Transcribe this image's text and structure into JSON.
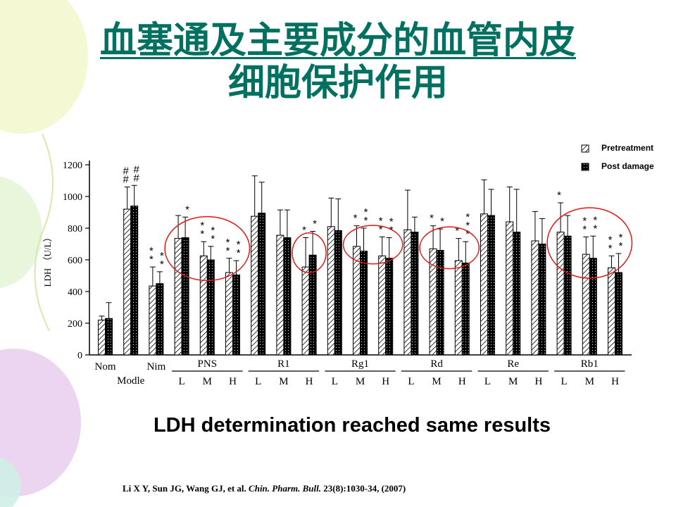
{
  "slide": {
    "title_line1": "血塞通及主要成分的血管内皮",
    "title_line2": "细胞保护作用",
    "subtitle": "LDH determination reached same results",
    "citation_authors": "Li X Y, Sun JG, Wang GJ, et al. ",
    "citation_journal": "Chin. Pharm. Bull.",
    "citation_rest": " 23(8):1030-34, (2007)"
  },
  "colors": {
    "title": "#007060",
    "highlight_circle": "#e01818",
    "bar_fill": "#000000",
    "axis": "#000000"
  },
  "chart_data": {
    "type": "bar",
    "ylabel": "LDH （U/L）",
    "ylim": [
      0,
      1200
    ],
    "yticks": [
      0,
      200,
      400,
      600,
      800,
      1000,
      1200
    ],
    "grid": false,
    "legend_position": "top-right",
    "legend": [
      "Pretreatment",
      "Post damage"
    ],
    "series": [
      {
        "name": "Pretreatment",
        "pattern": "hatch",
        "values": [
          220,
          920,
          435,
          735,
          625,
          520,
          875,
          755,
          555,
          810,
          685,
          625,
          790,
          670,
          595,
          890,
          840,
          720,
          775,
          635,
          550
        ],
        "errors": [
          25,
          140,
          120,
          145,
          90,
          90,
          255,
          160,
          185,
          180,
          130,
          120,
          250,
          145,
          140,
          215,
          220,
          185,
          185,
          110,
          75
        ]
      },
      {
        "name": "Post damage",
        "pattern": "dots",
        "values": [
          230,
          940,
          450,
          740,
          600,
          505,
          895,
          740,
          630,
          785,
          655,
          610,
          775,
          660,
          580,
          880,
          775,
          700,
          750,
          610,
          520
        ],
        "errors": [
          100,
          130,
          75,
          130,
          85,
          90,
          195,
          175,
          150,
          200,
          145,
          130,
          95,
          135,
          135,
          165,
          270,
          160,
          130,
          140,
          120
        ]
      }
    ],
    "group_labels": [
      "Nom",
      "Modle",
      "Nim",
      "L",
      "M",
      "H",
      "L",
      "M",
      "H",
      "L",
      "M",
      "H",
      "L",
      "M",
      "H",
      "L",
      "M",
      "H",
      "L",
      "M",
      "H"
    ],
    "drug_groups": [
      {
        "name": "PNS",
        "from": 3,
        "to": 5
      },
      {
        "name": "R1",
        "from": 6,
        "to": 8
      },
      {
        "name": "Rg1",
        "from": 9,
        "to": 11
      },
      {
        "name": "Rd",
        "from": 12,
        "to": 14
      },
      {
        "name": "Re",
        "from": 15,
        "to": 17
      },
      {
        "name": "Rb1",
        "from": 18,
        "to": 20
      }
    ],
    "annotations": [
      {
        "group": 1,
        "bar": 0,
        "text": "#\n#"
      },
      {
        "group": 1,
        "bar": 1,
        "text": "#\n#"
      },
      {
        "group": 2,
        "bar": 0,
        "text": "*\n*"
      },
      {
        "group": 2,
        "bar": 1,
        "text": "*\n*"
      },
      {
        "group": 3,
        "bar": 1,
        "text": "*"
      },
      {
        "group": 4,
        "bar": 0,
        "text": "*\n*"
      },
      {
        "group": 4,
        "bar": 1,
        "text": "*\n*"
      },
      {
        "group": 5,
        "bar": 0,
        "text": "*\n*"
      },
      {
        "group": 5,
        "bar": 1,
        "text": "*\n*"
      },
      {
        "group": 8,
        "bar": 0,
        "text": "*"
      },
      {
        "group": 8,
        "bar": 1,
        "text": "*"
      },
      {
        "group": 10,
        "bar": 0,
        "text": "*"
      },
      {
        "group": 10,
        "bar": 1,
        "text": "*\n*"
      },
      {
        "group": 11,
        "bar": 0,
        "text": "*\n*"
      },
      {
        "group": 11,
        "bar": 1,
        "text": "*\n*"
      },
      {
        "group": 13,
        "bar": 0,
        "text": "*"
      },
      {
        "group": 13,
        "bar": 1,
        "text": "*"
      },
      {
        "group": 14,
        "bar": 0,
        "text": "*"
      },
      {
        "group": 14,
        "bar": 1,
        "text": "*\n*\n*"
      },
      {
        "group": 18,
        "bar": 0,
        "text": "*"
      },
      {
        "group": 19,
        "bar": 0,
        "text": "*\n*"
      },
      {
        "group": 19,
        "bar": 1,
        "text": "*\n*"
      },
      {
        "group": 20,
        "bar": 0,
        "text": "*\n*"
      },
      {
        "group": 20,
        "bar": 1,
        "text": "*\n*"
      }
    ],
    "highlight_ellipses": [
      {
        "from": 3,
        "to": 5
      },
      {
        "from": 8,
        "to": 8
      },
      {
        "from": 10,
        "to": 11
      },
      {
        "from": 13,
        "to": 14
      },
      {
        "from": 18,
        "to": 20
      }
    ]
  }
}
